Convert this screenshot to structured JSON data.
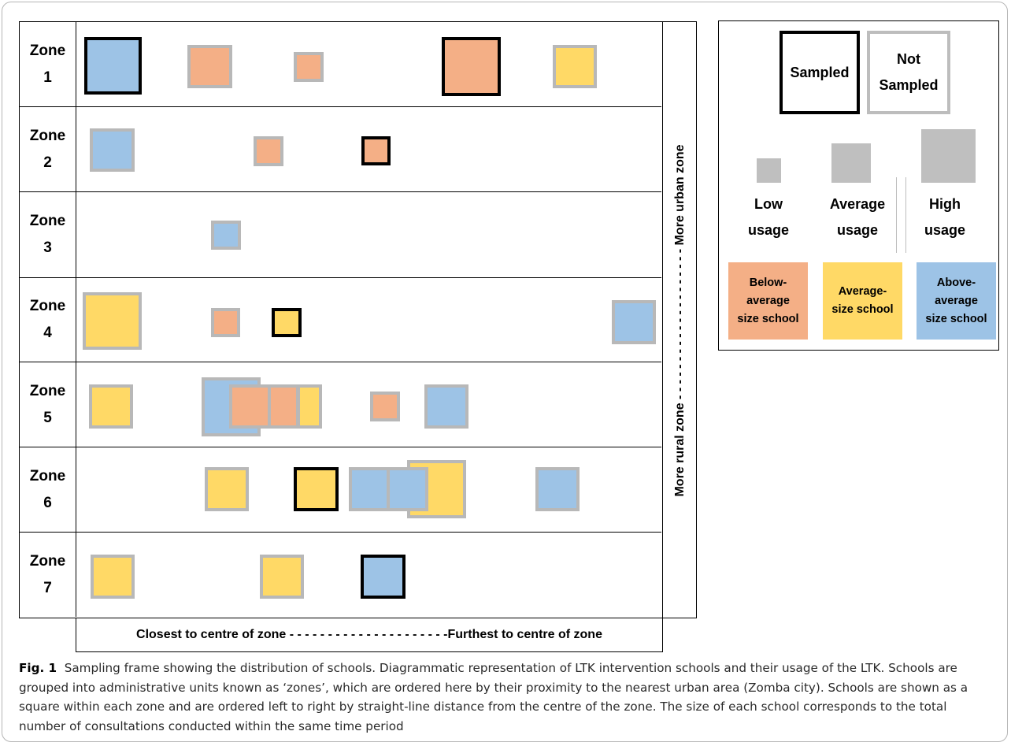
{
  "zones": [
    {
      "label": [
        "Zone",
        "1"
      ]
    },
    {
      "label": [
        "Zone",
        "2"
      ]
    },
    {
      "label": [
        "Zone",
        "3"
      ]
    },
    {
      "label": [
        "Zone",
        "4"
      ]
    },
    {
      "label": [
        "Zone",
        "5"
      ]
    },
    {
      "label": [
        "Zone",
        "6"
      ]
    },
    {
      "label": [
        "Zone",
        "7"
      ]
    }
  ],
  "side_axis": {
    "text": "More rural zone - - - - - - - - - - - - - - - - - - - - More urban zone"
  },
  "bottom_axis": {
    "text": "Closest to centre of zone - - - - - - - - - - - - - - - - - - - - -Furthest to centre of zone"
  },
  "legend": {
    "sampled": "Sampled",
    "not_sampled_1": "Not",
    "not_sampled_2": "Sampled",
    "low_1": "Low",
    "low_2": "usage",
    "avg_1": "Average",
    "avg_2": "usage",
    "high_1": "High",
    "high_2": "usage",
    "below_1": "Below-",
    "below_2": "average",
    "below_3": "size school",
    "average_1": "Average-",
    "average_2": "size school",
    "above_1": "Above-",
    "above_2": "average",
    "above_3": "size school"
  },
  "colors": {
    "below_average": "#f4af86",
    "average": "#ffd966",
    "above_average": "#9dc3e6",
    "sampled_border": "#000000",
    "not_sampled_border": "#b8b8b8"
  },
  "caption": {
    "fig": "Fig. 1",
    "text": "Sampling frame showing the distribution of schools. Diagrammatic representation of LTK intervention schools and their usage of the LTK. Schools are grouped into administrative units known as ‘zones’, which are ordered here by their proximity to the nearest urban area (Zomba city). Schools are shown as a square within each zone and are ordered left to right by straight-line distance from the centre of the zone. The size of each school corresponds to the total number of consultations conducted within the same time period"
  }
}
